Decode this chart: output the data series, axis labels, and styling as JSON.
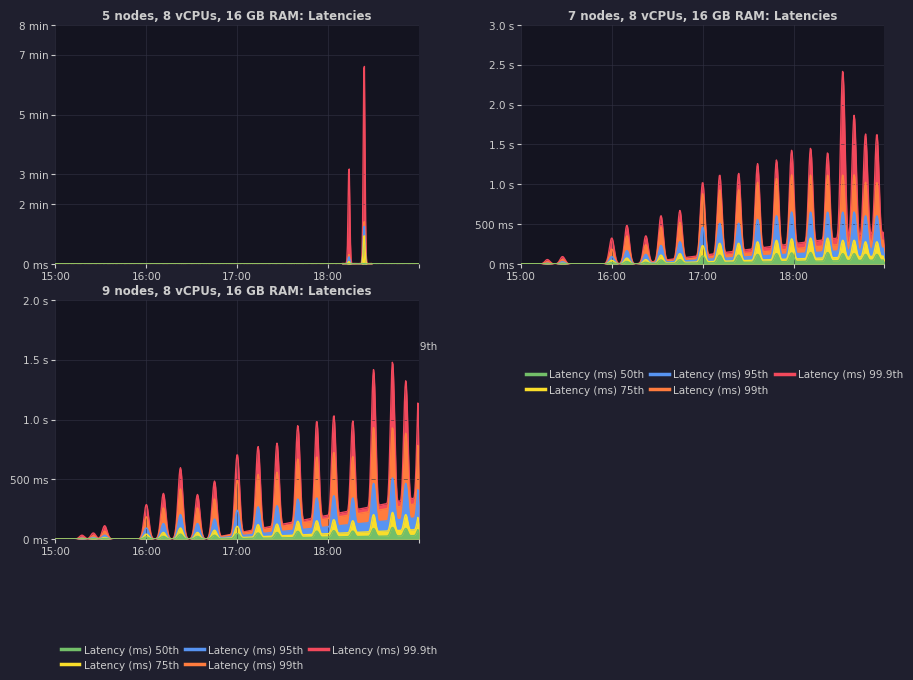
{
  "bg_color": "#1f1f2e",
  "plot_bg_color": "#141420",
  "text_color": "#cccccc",
  "grid_color": "#333344",
  "line_colors": {
    "p50": "#73bf69",
    "p75": "#fade2a",
    "p95": "#5794f2",
    "p99": "#ff7c3e",
    "p999": "#f2495c"
  },
  "legend_labels": [
    "Latency (ms) 50th",
    "Latency (ms) 75th",
    "Latency (ms) 95th",
    "Latency (ms) 99th",
    "Latency (ms) 99.9th"
  ],
  "titles": [
    "5 nodes, 8 vCPUs, 16 GB RAM: Latencies",
    "7 nodes, 8 vCPUs, 16 GB RAM: Latencies",
    "9 nodes, 8 vCPUs, 16 GB RAM: Latencies"
  ],
  "xtick_positions": [
    0,
    48,
    96,
    144,
    192
  ],
  "xtick_labels": [
    "15:00",
    "16:00",
    "17:00",
    "18:00",
    ""
  ],
  "chart1_ytick_vals": [
    0,
    120000,
    180000,
    300000,
    420000,
    480000
  ],
  "chart1_ytick_labels": [
    "0 ms",
    "2 min",
    "3 min",
    "5 min",
    "7 min",
    "8 min"
  ],
  "chart1_ylim": 480000,
  "chart2_ytick_vals": [
    0,
    500,
    1000,
    1500,
    2000,
    2500,
    3000
  ],
  "chart2_ytick_labels": [
    "0 ms",
    "500 ms",
    "1.0 s",
    "1.5 s",
    "2.0 s",
    "2.5 s",
    "3.0 s"
  ],
  "chart2_ylim": 3000,
  "chart3_ytick_vals": [
    0,
    500,
    1000,
    1500,
    2000
  ],
  "chart3_ytick_labels": [
    "0 ms",
    "500 ms",
    "1.0 s",
    "1.5 s",
    "2.0 s"
  ],
  "chart3_ylim": 2000
}
